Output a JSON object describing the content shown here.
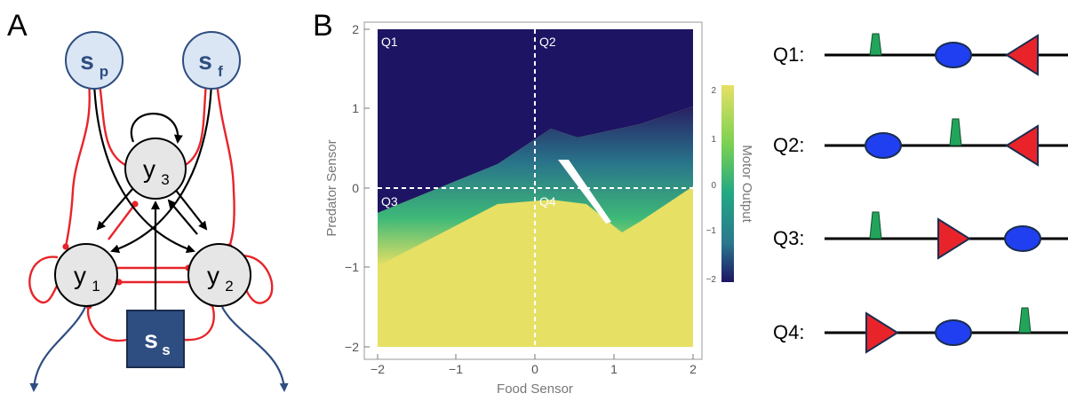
{
  "panel_a": {
    "letter": "A",
    "nodes": {
      "sp": {
        "base": "s",
        "sub": "p"
      },
      "sf": {
        "base": "s",
        "sub": "f"
      },
      "y3": {
        "base": "y",
        "sub": "3"
      },
      "y1": {
        "base": "y",
        "sub": "1"
      },
      "y2": {
        "base": "y",
        "sub": "2"
      },
      "ss": {
        "base": "s",
        "sub": "s"
      }
    }
  },
  "panel_b": {
    "letter": "B",
    "chart_data": {
      "type": "heatmap",
      "xlabel": "Food Sensor",
      "ylabel": "Predator Sensor",
      "xlim": [
        -2,
        2
      ],
      "ylim": [
        -2,
        2
      ],
      "x_ticks": [
        "−2",
        "−1",
        "0",
        "1",
        "2"
      ],
      "y_ticks": [
        "−2",
        "−1",
        "0",
        "1",
        "2"
      ],
      "colorbar": {
        "label": "Motor Output",
        "range": [
          -2,
          2
        ],
        "ticks": [
          "2",
          "1",
          "0",
          "−1",
          "−2"
        ]
      },
      "quadrants": [
        "Q1",
        "Q2",
        "Q3",
        "Q4"
      ],
      "dashed_lines": {
        "x": 0,
        "y": 0
      }
    }
  },
  "panel_c": {
    "rows": [
      {
        "label": "Q1:",
        "order": [
          "food",
          "agent",
          "predator-left"
        ]
      },
      {
        "label": "Q2:",
        "order": [
          "agent",
          "food",
          "predator-left"
        ]
      },
      {
        "label": "Q3:",
        "order": [
          "food",
          "predator-right",
          "agent"
        ]
      },
      {
        "label": "Q4:",
        "order": [
          "predator-right",
          "agent",
          "food"
        ]
      }
    ]
  },
  "colors": {
    "sensor_fill": "#dbe6f5",
    "sensor_stroke": "#2e4d80",
    "neuron_fill": "#e6e6e6",
    "inhibitory": "#e8242a",
    "excitatory": "#000000",
    "motor": "#2e4d80",
    "agent": "#1f3ff0",
    "predator": "#e8242a",
    "food": "#22a55b",
    "heat_high": "#e6e065",
    "heat_low": "#1d1563"
  }
}
